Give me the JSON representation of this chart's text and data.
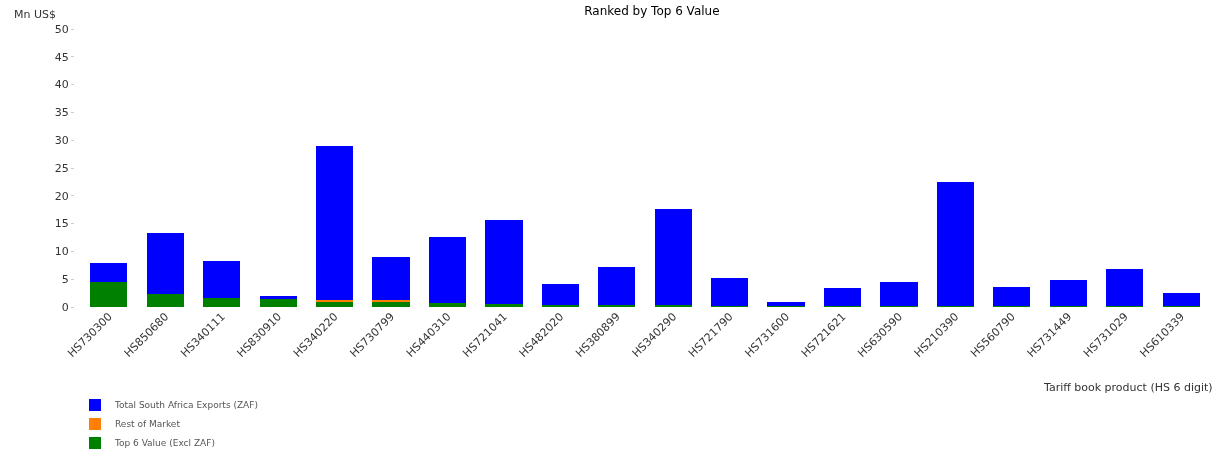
{
  "chart_data": {
    "type": "bar",
    "stacked": true,
    "title": "Ranked by Top 6 Value",
    "ylabel": "Mn US$",
    "xlabel": "Tariff book product (HS 6 digit)",
    "categories": [
      "HS730300",
      "HS850680",
      "HS340111",
      "HS830910",
      "HS340220",
      "HS730799",
      "HS440310",
      "HS721041",
      "HS482020",
      "HS380899",
      "HS340290",
      "HS721790",
      "HS731600",
      "HS721621",
      "HS630590",
      "HS210390",
      "HS560790",
      "HS731449",
      "HS731029",
      "HS610339"
    ],
    "series": [
      {
        "name": "Top 6 Value (Excl ZAF)",
        "color": "#008000",
        "values": [
          4.5,
          2.4,
          1.6,
          1.5,
          1.0,
          1.0,
          0.8,
          0.5,
          0.3,
          0.3,
          0.3,
          0.1,
          0.1,
          0.1,
          0.1,
          0.1,
          0.1,
          0.1,
          0.1,
          0.1
        ]
      },
      {
        "name": "Rest of Market",
        "color": "#ff8000",
        "values": [
          0,
          0,
          0,
          0,
          0.2,
          0.2,
          0,
          0,
          0,
          0,
          0,
          0,
          0,
          0,
          0,
          0,
          0,
          0,
          0,
          0
        ]
      },
      {
        "name": "Total South Africa Exports (ZAF)",
        "color": "#0000ff",
        "values": [
          3.5,
          11.0,
          6.6,
          0.5,
          27.8,
          7.8,
          11.8,
          15.2,
          3.8,
          6.9,
          17.4,
          5.2,
          0.8,
          3.3,
          4.4,
          22.3,
          3.5,
          4.8,
          6.7,
          2.5
        ]
      }
    ],
    "ylim": [
      0,
      50
    ],
    "yticks": [
      0,
      5,
      10,
      15,
      20,
      25,
      30,
      35,
      40,
      45,
      50
    ],
    "grid": false,
    "legend": "bottom left"
  }
}
